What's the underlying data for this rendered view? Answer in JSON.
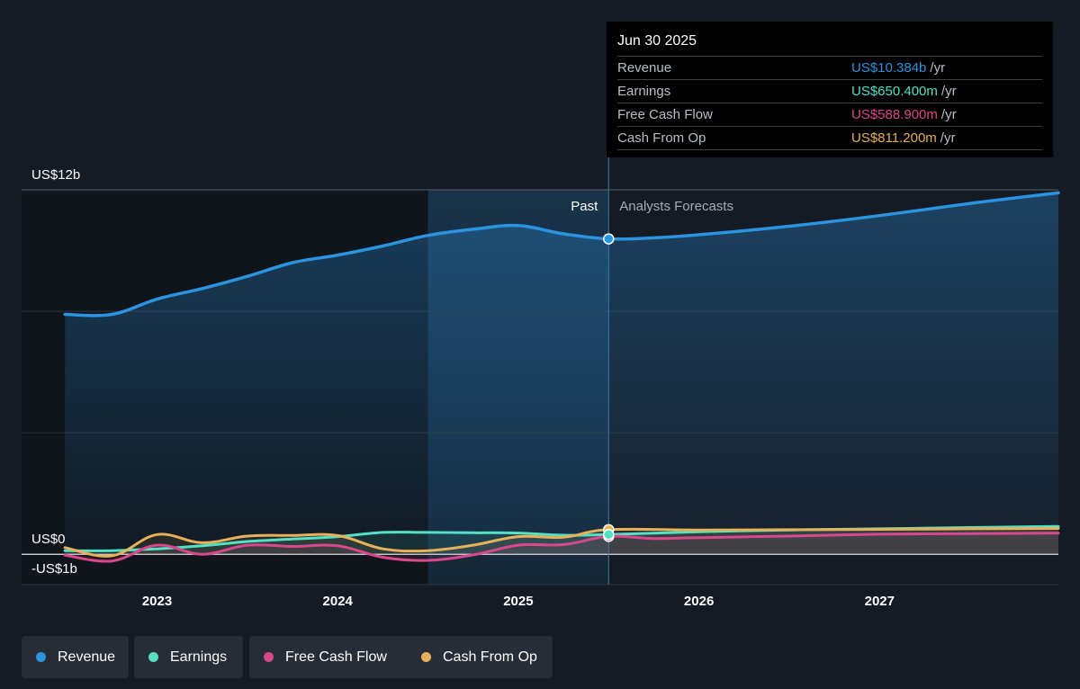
{
  "colors": {
    "revenue": "#2b93e0",
    "earnings": "#53e0c5",
    "free_cash_flow": "#d9478c",
    "cash_from_op": "#e8b059"
  },
  "tooltip": {
    "date": "Jun 30 2025",
    "unit": "/yr",
    "rows": [
      {
        "name": "Revenue",
        "value": "US$10.384b",
        "color": "#2b93e0"
      },
      {
        "name": "Earnings",
        "value": "US$650.400m",
        "color": "#53e0c5"
      },
      {
        "name": "Free Cash Flow",
        "value": "US$588.900m",
        "color": "#d9478c"
      },
      {
        "name": "Cash From Op",
        "value": "US$811.200m",
        "color": "#e8b059"
      }
    ]
  },
  "legend": [
    {
      "label": "Revenue",
      "color": "#2b93e0"
    },
    {
      "label": "Earnings",
      "color": "#53e0c5"
    },
    {
      "label": "Free Cash Flow",
      "color": "#d9478c"
    },
    {
      "label": "Cash From Op",
      "color": "#e8b059"
    }
  ],
  "chart_data": {
    "type": "line",
    "x_unit": "year",
    "xlim": [
      2022.25,
      2027.99
    ],
    "ylim": [
      -1,
      12
    ],
    "y_tick_labels": [
      {
        "value": 12,
        "label": "US$12b"
      },
      {
        "value": 0,
        "label": "US$0"
      },
      {
        "value": -1,
        "label": "-US$1b"
      }
    ],
    "x_ticks": [
      {
        "value": 2023,
        "label": "2023"
      },
      {
        "value": 2024,
        "label": "2024"
      },
      {
        "value": 2025,
        "label": "2025"
      },
      {
        "value": 2026,
        "label": "2026"
      },
      {
        "value": 2027,
        "label": "2027"
      }
    ],
    "grid": true,
    "past_label": "Past",
    "forecast_label": "Analysts Forecasts",
    "divider_x": 2025.5,
    "highlight_start": 2024.5,
    "series": [
      {
        "name": "Revenue",
        "key": "revenue",
        "points": [
          [
            2022.49,
            7.9
          ],
          [
            2022.75,
            7.9
          ],
          [
            2023.0,
            8.4
          ],
          [
            2023.25,
            8.75
          ],
          [
            2023.5,
            9.15
          ],
          [
            2023.75,
            9.6
          ],
          [
            2024.0,
            9.85
          ],
          [
            2024.25,
            10.15
          ],
          [
            2024.5,
            10.5
          ],
          [
            2024.75,
            10.7
          ],
          [
            2025.0,
            10.82
          ],
          [
            2025.25,
            10.55
          ],
          [
            2025.5,
            10.384
          ],
          [
            2025.75,
            10.42
          ],
          [
            2026.0,
            10.52
          ],
          [
            2026.5,
            10.8
          ],
          [
            2027.0,
            11.15
          ],
          [
            2027.5,
            11.55
          ],
          [
            2027.99,
            11.9
          ]
        ]
      },
      {
        "name": "Earnings",
        "key": "earnings",
        "points": [
          [
            2022.49,
            0.12
          ],
          [
            2022.75,
            0.12
          ],
          [
            2023.0,
            0.18
          ],
          [
            2023.25,
            0.28
          ],
          [
            2023.5,
            0.42
          ],
          [
            2023.75,
            0.5
          ],
          [
            2024.0,
            0.58
          ],
          [
            2024.25,
            0.72
          ],
          [
            2024.5,
            0.72
          ],
          [
            2024.75,
            0.71
          ],
          [
            2025.0,
            0.7
          ],
          [
            2025.25,
            0.63
          ],
          [
            2025.5,
            0.6504
          ],
          [
            2026.0,
            0.74
          ],
          [
            2026.5,
            0.8
          ],
          [
            2027.0,
            0.84
          ],
          [
            2027.5,
            0.88
          ],
          [
            2027.99,
            0.92
          ]
        ]
      },
      {
        "name": "Free Cash Flow",
        "key": "free_cash_flow",
        "points": [
          [
            2022.49,
            -0.03
          ],
          [
            2022.75,
            -0.22
          ],
          [
            2023.0,
            0.3
          ],
          [
            2023.25,
            0.0
          ],
          [
            2023.5,
            0.3
          ],
          [
            2023.75,
            0.26
          ],
          [
            2024.0,
            0.28
          ],
          [
            2024.25,
            -0.1
          ],
          [
            2024.5,
            -0.2
          ],
          [
            2024.75,
            -0.02
          ],
          [
            2025.0,
            0.3
          ],
          [
            2025.25,
            0.32
          ],
          [
            2025.5,
            0.5889
          ],
          [
            2025.75,
            0.52
          ],
          [
            2026.0,
            0.55
          ],
          [
            2026.5,
            0.6
          ],
          [
            2027.0,
            0.66
          ],
          [
            2027.5,
            0.68
          ],
          [
            2027.99,
            0.7
          ]
        ]
      },
      {
        "name": "Cash From Op",
        "key": "cash_from_op",
        "points": [
          [
            2022.49,
            0.22
          ],
          [
            2022.75,
            -0.05
          ],
          [
            2023.0,
            0.65
          ],
          [
            2023.25,
            0.38
          ],
          [
            2023.5,
            0.6
          ],
          [
            2023.75,
            0.62
          ],
          [
            2024.0,
            0.62
          ],
          [
            2024.25,
            0.18
          ],
          [
            2024.5,
            0.12
          ],
          [
            2024.75,
            0.3
          ],
          [
            2025.0,
            0.58
          ],
          [
            2025.25,
            0.56
          ],
          [
            2025.5,
            0.8112
          ],
          [
            2026.0,
            0.8
          ],
          [
            2026.5,
            0.81
          ],
          [
            2027.0,
            0.82
          ],
          [
            2027.5,
            0.84
          ],
          [
            2027.99,
            0.85
          ]
        ]
      }
    ]
  }
}
